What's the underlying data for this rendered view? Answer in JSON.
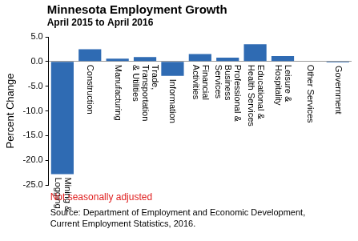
{
  "chart_data": {
    "type": "bar",
    "title": "Minnesota Employment Growth",
    "subtitle": "April 2015 to April 2016",
    "y_label": "Percent Change",
    "note": "Not seasonally adjusted",
    "source": [
      "Source: Department of Employment and Economic Development,",
      "Current Employment Statistics, 2016."
    ],
    "categories": [
      "Mining & Logging",
      "Construction",
      "Manufacturing",
      "Trade, Transportation & Utilities",
      "Information",
      "Financial Activities",
      "Professional & Business Services",
      "Educational & Health Services",
      "Leisure & Hospitality",
      "Other Services",
      "Government"
    ],
    "values": [
      -22.8,
      2.5,
      0.6,
      0.9,
      -2.9,
      1.5,
      0.8,
      3.5,
      1.1,
      0.1,
      -0.2
    ],
    "color": "#2f6bb3",
    "ylim": [
      -25,
      5
    ],
    "yticks": [
      {
        "value": -25,
        "label": "-25.0"
      },
      {
        "value": -20,
        "label": "-20.0"
      },
      {
        "value": -15,
        "label": "-15.0"
      },
      {
        "value": -10,
        "label": "-10.0"
      },
      {
        "value": -5,
        "label": "-5.0"
      },
      {
        "value": 0,
        "label": "0.0"
      },
      {
        "value": 5,
        "label": "5.0"
      }
    ],
    "grid": false
  }
}
